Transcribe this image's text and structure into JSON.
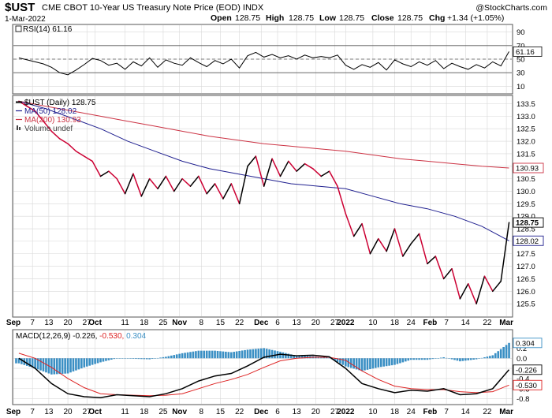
{
  "header": {
    "symbol": "$UST",
    "description": "CME CBOT 10-Year US Treasury Note Price (EOD)  INDX",
    "watermark": "@StockCharts.com",
    "date": "1-Mar-2022",
    "open_label": "Open",
    "open": "128.75",
    "high_label": "High",
    "high": "128.75",
    "low_label": "Low",
    "low": "128.75",
    "close_label": "Close",
    "close": "128.75",
    "chg_label": "Chg",
    "chg": "+1.34 (+1.05%)"
  },
  "colors": {
    "price": "#000000",
    "price_down": "#cc0033",
    "ma50": "#1f1f8f",
    "ma200": "#cc3344",
    "macd_hist": "#3a8fc4",
    "macd_line": "#000000",
    "signal_line": "#dd2222",
    "grid": "#d8d8d8"
  },
  "x_axis_labels": [
    {
      "label": "Sep",
      "day": 0,
      "bold": true
    },
    {
      "label": "7",
      "day": 7
    },
    {
      "label": "13",
      "day": 13
    },
    {
      "label": "20",
      "day": 20
    },
    {
      "label": "27",
      "day": 27
    },
    {
      "label": "Oct",
      "day": 30,
      "bold": true
    },
    {
      "label": "11",
      "day": 41
    },
    {
      "label": "18",
      "day": 48
    },
    {
      "label": "25",
      "day": 55
    },
    {
      "label": "Nov",
      "day": 61,
      "bold": true
    },
    {
      "label": "8",
      "day": 69
    },
    {
      "label": "15",
      "day": 76
    },
    {
      "label": "22",
      "day": 83
    },
    {
      "label": "Dec",
      "day": 91,
      "bold": true
    },
    {
      "label": "6",
      "day": 97
    },
    {
      "label": "13",
      "day": 104
    },
    {
      "label": "20",
      "day": 111
    },
    {
      "label": "27",
      "day": 118
    },
    {
      "label": "2022",
      "day": 122,
      "bold": true
    },
    {
      "label": "10",
      "day": 132
    },
    {
      "label": "18",
      "day": 140
    },
    {
      "label": "24",
      "day": 146
    },
    {
      "label": "Feb",
      "day": 153,
      "bold": true
    },
    {
      "label": "7",
      "day": 159
    },
    {
      "label": "14",
      "day": 166
    },
    {
      "label": "22",
      "day": 174
    },
    {
      "label": "Mar",
      "day": 181,
      "bold": true
    }
  ],
  "chart_data": [
    {
      "type": "line",
      "title": "RSI(14) 61.16",
      "legend": "RSI(14) 61.16",
      "ylim": [
        0,
        100
      ],
      "yticks": [
        10,
        30,
        50,
        70,
        90
      ],
      "reference_lines": [
        30,
        50,
        70
      ],
      "last_value": "61.16",
      "x": [
        2,
        5,
        8,
        11,
        14,
        17,
        20,
        23,
        26,
        29,
        32,
        35,
        38,
        41,
        44,
        47,
        50,
        53,
        56,
        59,
        62,
        65,
        68,
        71,
        74,
        77,
        80,
        83,
        86,
        89,
        92,
        95,
        98,
        101,
        104,
        107,
        110,
        113,
        116,
        119,
        122,
        125,
        128,
        131,
        134,
        137,
        140,
        143,
        146,
        149,
        152,
        155,
        158,
        161,
        164,
        167,
        170,
        173,
        176,
        179,
        182
      ],
      "values": [
        52,
        49,
        46,
        43,
        38,
        30,
        27,
        34,
        42,
        51,
        48,
        41,
        44,
        35,
        46,
        40,
        52,
        38,
        49,
        44,
        41,
        52,
        45,
        39,
        48,
        43,
        50,
        37,
        55,
        60,
        53,
        57,
        52,
        55,
        50,
        56,
        52,
        54,
        52,
        56,
        41,
        35,
        42,
        38,
        45,
        34,
        49,
        43,
        39,
        46,
        41,
        48,
        36,
        44,
        39,
        35,
        42,
        37,
        46,
        40,
        61.16
      ]
    },
    {
      "type": "line",
      "title": "$UST (Daily) 128.75",
      "ylim": [
        125.0,
        133.8
      ],
      "yticks": [
        125.5,
        126.0,
        126.5,
        127.0,
        127.5,
        128.0,
        128.5,
        129.0,
        129.5,
        130.0,
        130.5,
        131.0,
        131.5,
        132.0,
        132.5,
        133.0,
        133.5
      ],
      "legend": [
        "$UST (Daily) 128.75",
        "MA(50) 128.02",
        "MA(200) 130.93",
        "Volume undef"
      ],
      "series": [
        {
          "name": "$UST (Daily)",
          "last_value": "128.75",
          "x": [
            2,
            5,
            8,
            11,
            14,
            17,
            20,
            23,
            26,
            29,
            32,
            35,
            38,
            41,
            44,
            47,
            50,
            53,
            56,
            59,
            62,
            65,
            68,
            71,
            74,
            77,
            80,
            83,
            86,
            89,
            92,
            95,
            98,
            101,
            104,
            107,
            110,
            113,
            116,
            119,
            122,
            125,
            128,
            131,
            134,
            137,
            140,
            143,
            146,
            149,
            152,
            155,
            158,
            161,
            164,
            167,
            170,
            173,
            176,
            179,
            182
          ],
          "values": [
            133.6,
            133.4,
            133.2,
            132.8,
            132.4,
            132.1,
            131.9,
            131.6,
            131.4,
            131.2,
            130.6,
            130.8,
            130.5,
            129.9,
            130.7,
            129.8,
            130.5,
            130.1,
            130.6,
            130.0,
            130.5,
            130.2,
            130.6,
            129.9,
            130.3,
            129.7,
            130.3,
            129.5,
            131.0,
            131.4,
            130.2,
            131.3,
            130.6,
            131.2,
            130.8,
            131.1,
            130.9,
            130.6,
            130.8,
            130.2,
            129.1,
            128.2,
            128.7,
            127.5,
            128.1,
            127.6,
            128.5,
            127.4,
            127.9,
            128.3,
            127.1,
            127.4,
            126.5,
            126.9,
            125.7,
            126.3,
            125.5,
            126.6,
            126.0,
            126.4,
            128.75
          ]
        },
        {
          "name": "MA(50)",
          "last_value": "128.02",
          "x": [
            2,
            12,
            22,
            32,
            42,
            52,
            62,
            72,
            82,
            92,
            102,
            112,
            122,
            132,
            142,
            152,
            162,
            172,
            182
          ],
          "values": [
            133.6,
            133.3,
            132.9,
            132.5,
            132.0,
            131.6,
            131.2,
            130.9,
            130.7,
            130.5,
            130.3,
            130.2,
            130.1,
            129.8,
            129.5,
            129.3,
            129.0,
            128.6,
            128.02
          ]
        },
        {
          "name": "MA(200)",
          "last_value": "130.93",
          "x": [
            2,
            12,
            22,
            32,
            42,
            52,
            62,
            72,
            82,
            92,
            102,
            112,
            122,
            132,
            142,
            152,
            162,
            172,
            182
          ],
          "values": [
            133.6,
            133.4,
            133.2,
            133.0,
            132.8,
            132.6,
            132.4,
            132.2,
            132.05,
            131.9,
            131.8,
            131.7,
            131.6,
            131.45,
            131.3,
            131.2,
            131.1,
            131.0,
            130.93
          ]
        }
      ]
    },
    {
      "type": "line",
      "title": "MACD(12,26,9) -0.226, -0.530, 0.304",
      "legend": [
        "MACD(12,26,9)",
        "-0.226",
        "-0.530",
        "0.304"
      ],
      "ylim": [
        -0.9,
        0.55
      ],
      "yticks": [
        -0.8,
        -0.6,
        -0.4,
        -0.2,
        0.0,
        0.2
      ],
      "last_values": {
        "macd": "-0.226",
        "signal": "-0.530",
        "histogram": "0.304"
      },
      "series": [
        {
          "name": "MACD",
          "x": [
            2,
            8,
            14,
            20,
            26,
            32,
            38,
            44,
            50,
            56,
            62,
            68,
            74,
            80,
            86,
            92,
            98,
            104,
            110,
            116,
            122,
            128,
            134,
            140,
            146,
            152,
            158,
            164,
            170,
            176,
            182
          ],
          "values": [
            0.0,
            -0.2,
            -0.5,
            -0.7,
            -0.76,
            -0.78,
            -0.72,
            -0.74,
            -0.76,
            -0.7,
            -0.6,
            -0.45,
            -0.35,
            -0.3,
            -0.15,
            0.02,
            0.08,
            0.05,
            0.06,
            0.03,
            -0.2,
            -0.5,
            -0.6,
            -0.68,
            -0.63,
            -0.65,
            -0.6,
            -0.72,
            -0.7,
            -0.6,
            -0.226
          ]
        },
        {
          "name": "Signal",
          "x": [
            2,
            8,
            14,
            20,
            26,
            32,
            38,
            44,
            50,
            56,
            62,
            68,
            74,
            80,
            86,
            92,
            98,
            104,
            110,
            116,
            122,
            128,
            134,
            140,
            146,
            152,
            158,
            164,
            170,
            176,
            182
          ],
          "values": [
            0.1,
            0.0,
            -0.18,
            -0.4,
            -0.58,
            -0.7,
            -0.72,
            -0.73,
            -0.74,
            -0.73,
            -0.7,
            -0.6,
            -0.5,
            -0.42,
            -0.32,
            -0.18,
            -0.05,
            0.0,
            0.02,
            0.02,
            -0.04,
            -0.25,
            -0.42,
            -0.55,
            -0.6,
            -0.62,
            -0.62,
            -0.66,
            -0.68,
            -0.66,
            -0.53
          ]
        },
        {
          "name": "Histogram",
          "x": [
            2,
            8,
            14,
            20,
            26,
            32,
            38,
            44,
            50,
            56,
            62,
            68,
            74,
            80,
            86,
            92,
            98,
            104,
            110,
            116,
            122,
            128,
            134,
            140,
            146,
            152,
            158,
            164,
            170,
            176,
            182
          ],
          "values": [
            -0.1,
            -0.2,
            -0.32,
            -0.3,
            -0.18,
            -0.08,
            0.0,
            -0.01,
            -0.02,
            0.03,
            0.1,
            0.15,
            0.15,
            0.12,
            0.17,
            0.2,
            0.13,
            0.05,
            0.04,
            0.01,
            -0.16,
            -0.25,
            -0.18,
            -0.13,
            -0.03,
            -0.03,
            0.02,
            -0.06,
            -0.02,
            0.06,
            0.304
          ]
        }
      ]
    }
  ]
}
